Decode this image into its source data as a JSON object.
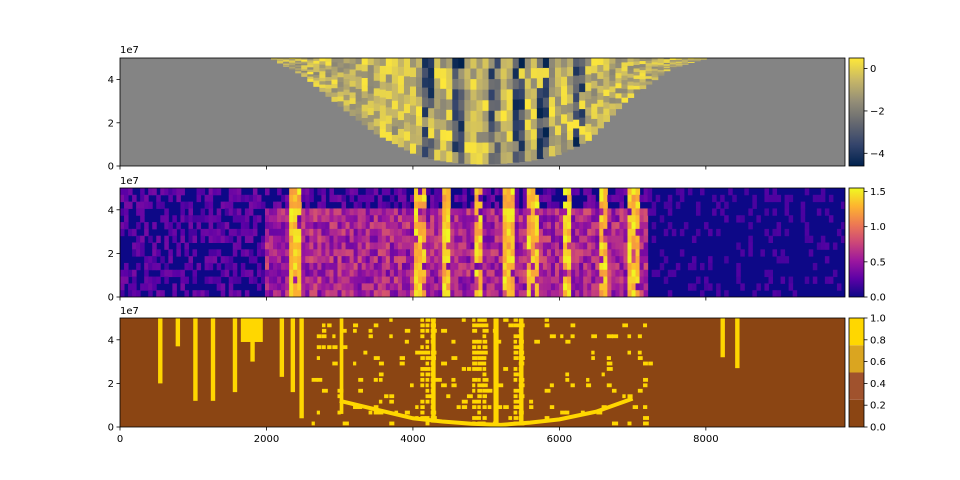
{
  "chart_data": [
    {
      "type": "heatmap",
      "title": "",
      "xlabel": "",
      "ylabel": "",
      "xlim": [
        0,
        9900
      ],
      "ylim": [
        0,
        50000000
      ],
      "y_offset_label": "1e7",
      "y_ticks": [
        {
          "value": 0,
          "label": "0"
        },
        {
          "value": 20000000,
          "label": "2"
        },
        {
          "value": 40000000,
          "label": "4"
        }
      ],
      "x_ticks": [
        {
          "value": 0,
          "label": ""
        },
        {
          "value": 2000,
          "label": ""
        },
        {
          "value": 4000,
          "label": ""
        },
        {
          "value": 6000,
          "label": ""
        },
        {
          "value": 8000,
          "label": ""
        }
      ],
      "colormap": "cividis",
      "colormap_stops": [
        "#00224e",
        "#35456c",
        "#666970",
        "#948e77",
        "#c8b866",
        "#fee838"
      ],
      "background_color": "#848484",
      "colorbar": {
        "vmin": -4.6,
        "vmax": 0.5,
        "ticks": [
          {
            "value": 0,
            "label": "0"
          },
          {
            "value": -2,
            "label": "−2"
          },
          {
            "value": -4,
            "label": "−4"
          }
        ]
      },
      "mask_profile": {
        "x": [
          2050,
          2500,
          3000,
          3500,
          4000,
          4300,
          4600,
          4900,
          5200,
          5600,
          6000,
          6400,
          6900,
          7500,
          8000
        ],
        "y_bottom": [
          50000000,
          42000000,
          28000000,
          15000000,
          6000000,
          3000000,
          1500000,
          1000000,
          1200000,
          2500000,
          5500000,
          12000000,
          30000000,
          45000000,
          50000000
        ]
      },
      "dark_streaks_x": [
        4200,
        4650,
        5100,
        5450,
        5800,
        6300
      ]
    },
    {
      "type": "heatmap",
      "title": "",
      "xlabel": "",
      "ylabel": "",
      "xlim": [
        0,
        9900
      ],
      "ylim": [
        0,
        50000000
      ],
      "y_offset_label": "1e7",
      "y_ticks": [
        {
          "value": 0,
          "label": "0"
        },
        {
          "value": 20000000,
          "label": "2"
        },
        {
          "value": 40000000,
          "label": "4"
        }
      ],
      "x_ticks": [
        {
          "value": 0,
          "label": ""
        },
        {
          "value": 2000,
          "label": ""
        },
        {
          "value": 4000,
          "label": ""
        },
        {
          "value": 6000,
          "label": ""
        },
        {
          "value": 8000,
          "label": ""
        }
      ],
      "colormap": "plasma",
      "colormap_stops": [
        "#0d0887",
        "#5c01a6",
        "#9c179e",
        "#cc4778",
        "#ed7953",
        "#fdb42f",
        "#f0f921"
      ],
      "colorbar": {
        "vmin": 0,
        "vmax": 1.55,
        "ticks": [
          {
            "value": 0,
            "label": "0.0"
          },
          {
            "value": 0.5,
            "label": "0.5"
          },
          {
            "value": 1.0,
            "label": "1.0"
          },
          {
            "value": 1.5,
            "label": "1.5"
          }
        ]
      },
      "bright_streaks_x": [
        2400,
        4100,
        4450,
        4900,
        5300,
        5650,
        6100,
        6600,
        7000
      ]
    },
    {
      "type": "heatmap",
      "title": "",
      "xlabel": "",
      "ylabel": "",
      "xlim": [
        0,
        9900
      ],
      "ylim": [
        0,
        50000000
      ],
      "y_offset_label": "1e7",
      "y_ticks": [
        {
          "value": 0,
          "label": "0"
        },
        {
          "value": 20000000,
          "label": "2"
        },
        {
          "value": 40000000,
          "label": "4"
        }
      ],
      "x_ticks": [
        {
          "value": 0,
          "label": "0"
        },
        {
          "value": 2000,
          "label": "2000"
        },
        {
          "value": 4000,
          "label": "4000"
        },
        {
          "value": 6000,
          "label": "6000"
        },
        {
          "value": 8000,
          "label": "8000"
        }
      ],
      "colormap": "discrete-brown-yellow",
      "colormap_stops": [
        "#8b4513",
        "#a0522d",
        "#daa520",
        "#ffd700"
      ],
      "base_color": "#8b4513",
      "mark_color": "#ffd700",
      "colorbar": {
        "vmin": 0,
        "vmax": 1,
        "ticks": [
          {
            "value": 0,
            "label": "0.0"
          },
          {
            "value": 0.2,
            "label": "0.2"
          },
          {
            "value": 0.4,
            "label": "0.4"
          },
          {
            "value": 0.6,
            "label": "0.6"
          },
          {
            "value": 0.8,
            "label": "0.8"
          },
          {
            "value": 1.0,
            "label": "1.0"
          }
        ],
        "bands": [
          {
            "from": 0,
            "to": 0.25,
            "color": "#8b4513"
          },
          {
            "from": 0.25,
            "to": 0.5,
            "color": "#a0522d"
          },
          {
            "from": 0.5,
            "to": 0.75,
            "color": "#daa520"
          },
          {
            "from": 0.75,
            "to": 1.0,
            "color": "#ffd700"
          }
        ]
      },
      "vertical_bars": [
        {
          "x": 520,
          "width": 60,
          "y_bottom": 20000000
        },
        {
          "x": 760,
          "width": 60,
          "y_bottom": 37000000
        },
        {
          "x": 1000,
          "width": 60,
          "y_bottom": 12000000
        },
        {
          "x": 1240,
          "width": 60,
          "y_bottom": 12000000
        },
        {
          "x": 1540,
          "width": 60,
          "y_bottom": 16000000
        },
        {
          "x": 1650,
          "width": 300,
          "y_bottom": 39000000
        },
        {
          "x": 1780,
          "width": 60,
          "y_bottom": 30000000
        },
        {
          "x": 2180,
          "width": 60,
          "y_bottom": 23000000
        },
        {
          "x": 2330,
          "width": 60,
          "y_bottom": 16000000
        },
        {
          "x": 2450,
          "width": 60,
          "y_bottom": 4000000
        },
        {
          "x": 3000,
          "width": 50,
          "y_bottom": 6000000
        },
        {
          "x": 4250,
          "width": 60,
          "y_bottom": 2000000
        },
        {
          "x": 5100,
          "width": 70,
          "y_bottom": 1000000
        },
        {
          "x": 5450,
          "width": 60,
          "y_bottom": 2000000
        },
        {
          "x": 8200,
          "width": 60,
          "y_bottom": 32000000
        },
        {
          "x": 8400,
          "width": 60,
          "y_bottom": 27000000
        }
      ],
      "bright_streaks_x": [
        4200,
        4900,
        5450
      ],
      "mask_profile": {
        "x": [
          3000,
          3500,
          4000,
          4400,
          4800,
          5200,
          5600,
          6000,
          6500,
          7000
        ],
        "y_bottom": [
          12000000,
          8000000,
          4000000,
          2500000,
          1500000,
          1000000,
          2000000,
          3500000,
          7000000,
          13000000
        ]
      }
    }
  ]
}
